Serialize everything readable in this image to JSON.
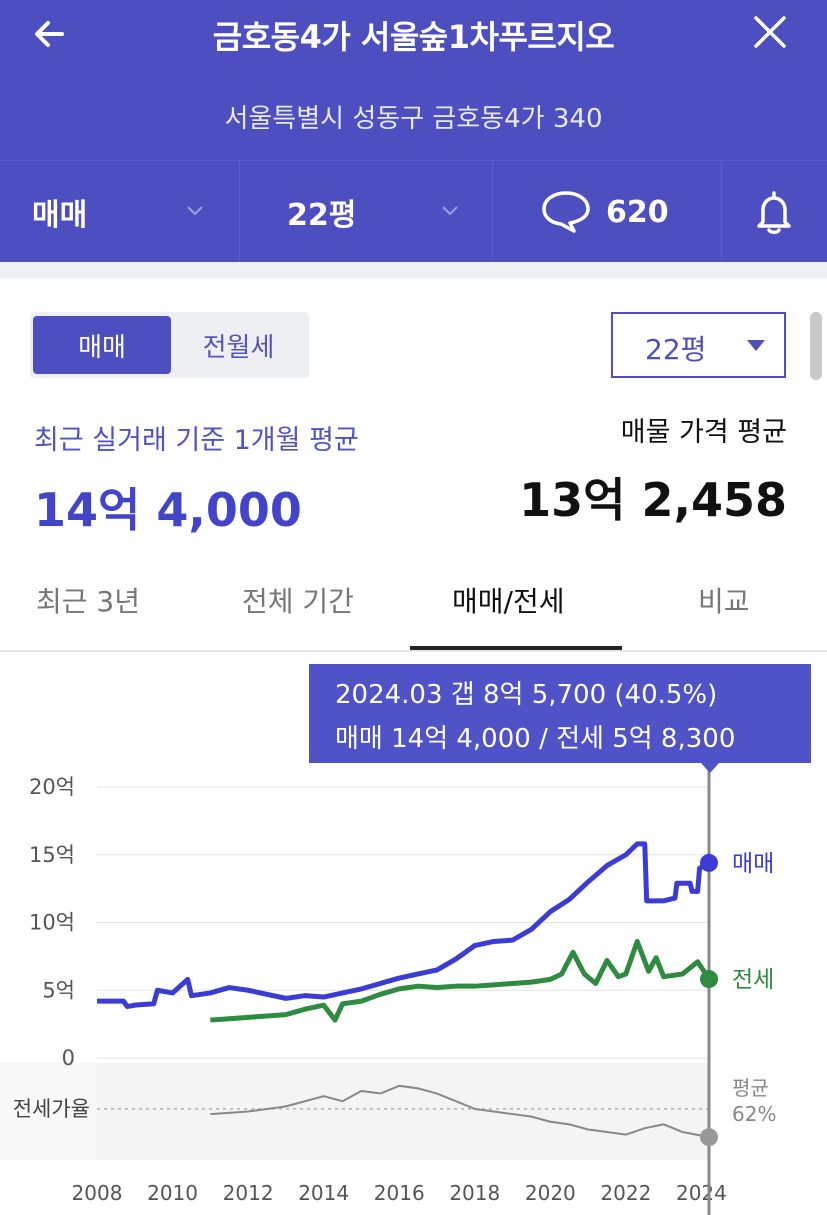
{
  "header": {
    "title": "금호동4가 서울숲1차푸르지오",
    "address": "서울특별시 성동구 금호동4가 340",
    "back_icon": "arrow-left-icon",
    "close_icon": "close-icon",
    "deal_type": "매매",
    "size": "22평",
    "comment_count": "620",
    "comment_icon": "speech-bubble-icon",
    "bell_icon": "bell-icon"
  },
  "filters": {
    "segment": [
      "매매",
      "전월세"
    ],
    "selected_segment": "매매",
    "size": "22평"
  },
  "summary": {
    "recent_label": "최근 실거래 기준 1개월 평균",
    "recent_value": "14억 4,000",
    "ask_label": "매물 가격 평균",
    "ask_value": "13억 2,458"
  },
  "tabs": [
    "최근 3년",
    "전체 기간",
    "매매/전세",
    "비교"
  ],
  "active_tab": "매매/전세",
  "tooltip": {
    "line1": "2024.03  갭 8억 5,700 (40.5%)",
    "line2": "매매 14억 4,000 / 전세 5억 8,300"
  },
  "colors": {
    "brand": "#4d4fc0",
    "sale": "#3b3bd6",
    "jeonse": "#2e8b3f",
    "ratio": "#888888"
  },
  "chart_data": {
    "type": "line",
    "x_unit": "year",
    "xlim": [
      2007.8,
      2024.6
    ],
    "ylim": [
      0,
      20
    ],
    "y_ticks": [
      "0",
      "5억",
      "10억",
      "15억",
      "20억"
    ],
    "x_ticks": [
      "2008",
      "2010",
      "2012",
      "2014",
      "2016",
      "2018",
      "2020",
      "2022",
      "2024"
    ],
    "series": [
      {
        "name": "매매",
        "values": [
          [
            2008.0,
            4.2
          ],
          [
            2008.7,
            4.2
          ],
          [
            2008.8,
            3.8
          ],
          [
            2009.0,
            3.9
          ],
          [
            2009.5,
            4.0
          ],
          [
            2009.6,
            5.0
          ],
          [
            2010.0,
            4.8
          ],
          [
            2010.4,
            5.8
          ],
          [
            2010.5,
            4.6
          ],
          [
            2011.0,
            4.8
          ],
          [
            2011.5,
            5.2
          ],
          [
            2012.0,
            5.0
          ],
          [
            2012.5,
            4.7
          ],
          [
            2013.0,
            4.4
          ],
          [
            2013.5,
            4.6
          ],
          [
            2014.0,
            4.5
          ],
          [
            2014.5,
            4.8
          ],
          [
            2015.0,
            5.1
          ],
          [
            2015.5,
            5.5
          ],
          [
            2016.0,
            5.9
          ],
          [
            2016.5,
            6.2
          ],
          [
            2017.0,
            6.5
          ],
          [
            2017.5,
            7.3
          ],
          [
            2018.0,
            8.3
          ],
          [
            2018.5,
            8.6
          ],
          [
            2019.0,
            8.7
          ],
          [
            2019.5,
            9.5
          ],
          [
            2020.0,
            10.8
          ],
          [
            2020.5,
            11.7
          ],
          [
            2021.0,
            13.0
          ],
          [
            2021.5,
            14.2
          ],
          [
            2022.0,
            15.0
          ],
          [
            2022.3,
            15.8
          ],
          [
            2022.5,
            15.8
          ],
          [
            2022.55,
            11.6
          ],
          [
            2023.0,
            11.6
          ],
          [
            2023.3,
            11.8
          ],
          [
            2023.35,
            12.9
          ],
          [
            2023.7,
            12.9
          ],
          [
            2023.75,
            12.3
          ],
          [
            2023.9,
            12.3
          ],
          [
            2023.95,
            14.0
          ],
          [
            2024.2,
            14.4
          ]
        ]
      },
      {
        "name": "전세",
        "values": [
          [
            2011.0,
            2.8
          ],
          [
            2011.5,
            2.9
          ],
          [
            2012.0,
            3.0
          ],
          [
            2012.5,
            3.1
          ],
          [
            2013.0,
            3.2
          ],
          [
            2013.5,
            3.6
          ],
          [
            2014.0,
            3.9
          ],
          [
            2014.3,
            2.8
          ],
          [
            2014.5,
            4.0
          ],
          [
            2015.0,
            4.2
          ],
          [
            2015.5,
            4.7
          ],
          [
            2016.0,
            5.1
          ],
          [
            2016.5,
            5.3
          ],
          [
            2017.0,
            5.2
          ],
          [
            2017.5,
            5.3
          ],
          [
            2018.0,
            5.3
          ],
          [
            2018.5,
            5.4
          ],
          [
            2019.0,
            5.5
          ],
          [
            2019.5,
            5.6
          ],
          [
            2020.0,
            5.8
          ],
          [
            2020.3,
            6.2
          ],
          [
            2020.6,
            7.8
          ],
          [
            2020.9,
            6.2
          ],
          [
            2021.2,
            5.5
          ],
          [
            2021.5,
            7.2
          ],
          [
            2021.8,
            6.0
          ],
          [
            2022.0,
            6.2
          ],
          [
            2022.3,
            8.6
          ],
          [
            2022.6,
            6.4
          ],
          [
            2022.8,
            7.4
          ],
          [
            2023.0,
            6.0
          ],
          [
            2023.5,
            6.2
          ],
          [
            2023.9,
            7.1
          ],
          [
            2024.2,
            5.83
          ]
        ]
      }
    ],
    "ratio": {
      "label": "전세가율",
      "avg_label": "평균",
      "avg_value": "62%",
      "values": [
        [
          2011.0,
          58
        ],
        [
          2012.0,
          60
        ],
        [
          2013.0,
          64
        ],
        [
          2014.0,
          72
        ],
        [
          2014.5,
          68
        ],
        [
          2015.0,
          76
        ],
        [
          2015.5,
          74
        ],
        [
          2016.0,
          80
        ],
        [
          2016.5,
          78
        ],
        [
          2017.0,
          74
        ],
        [
          2017.5,
          68
        ],
        [
          2018.0,
          62
        ],
        [
          2018.5,
          60
        ],
        [
          2019.0,
          58
        ],
        [
          2019.5,
          56
        ],
        [
          2020.0,
          52
        ],
        [
          2020.5,
          50
        ],
        [
          2021.0,
          46
        ],
        [
          2021.5,
          44
        ],
        [
          2022.0,
          42
        ],
        [
          2022.5,
          47
        ],
        [
          2023.0,
          50
        ],
        [
          2023.5,
          44
        ],
        [
          2024.2,
          40
        ]
      ]
    },
    "end_labels": [
      "매매",
      "전세"
    ]
  }
}
